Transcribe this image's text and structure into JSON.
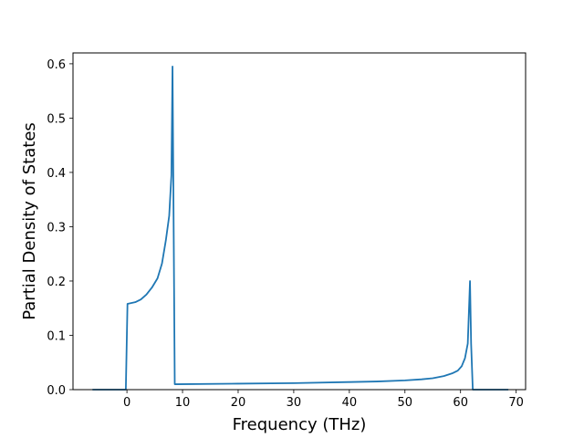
{
  "chart_data": {
    "type": "line",
    "title": "",
    "xlabel": "Frequency (THz)",
    "ylabel": "Partial Density of States",
    "xlim": [
      -9.7,
      71.7
    ],
    "ylim": [
      0,
      0.62
    ],
    "xticks": [
      0,
      10,
      20,
      30,
      40,
      50,
      60,
      70
    ],
    "yticks": [
      0.0,
      0.1,
      0.2,
      0.3,
      0.4,
      0.5,
      0.6
    ],
    "xtick_labels": [
      "0",
      "10",
      "20",
      "30",
      "40",
      "50",
      "60",
      "70"
    ],
    "ytick_labels": [
      "0.0",
      "0.1",
      "0.2",
      "0.3",
      "0.4",
      "0.5",
      "0.6"
    ],
    "grid": false,
    "legend": "none",
    "series": [
      {
        "color": "#1f77b4",
        "x": [
          -6.2,
          -0.2,
          0.1,
          1.5,
          2.5,
          3.5,
          4.5,
          5.5,
          6.3,
          7.0,
          7.6,
          8.0,
          8.2,
          8.6,
          9.0,
          20,
          30,
          40,
          45,
          50,
          53,
          55,
          57,
          58.5,
          59.5,
          60.2,
          60.8,
          61.3,
          61.7,
          61.9,
          62.2,
          68.6
        ],
        "y": [
          0.0,
          0.0,
          0.158,
          0.161,
          0.166,
          0.175,
          0.188,
          0.205,
          0.232,
          0.275,
          0.32,
          0.395,
          0.595,
          0.01,
          0.01,
          0.011,
          0.012,
          0.014,
          0.015,
          0.017,
          0.019,
          0.021,
          0.025,
          0.03,
          0.035,
          0.043,
          0.058,
          0.085,
          0.2,
          0.085,
          0.0,
          0.0
        ]
      }
    ]
  }
}
